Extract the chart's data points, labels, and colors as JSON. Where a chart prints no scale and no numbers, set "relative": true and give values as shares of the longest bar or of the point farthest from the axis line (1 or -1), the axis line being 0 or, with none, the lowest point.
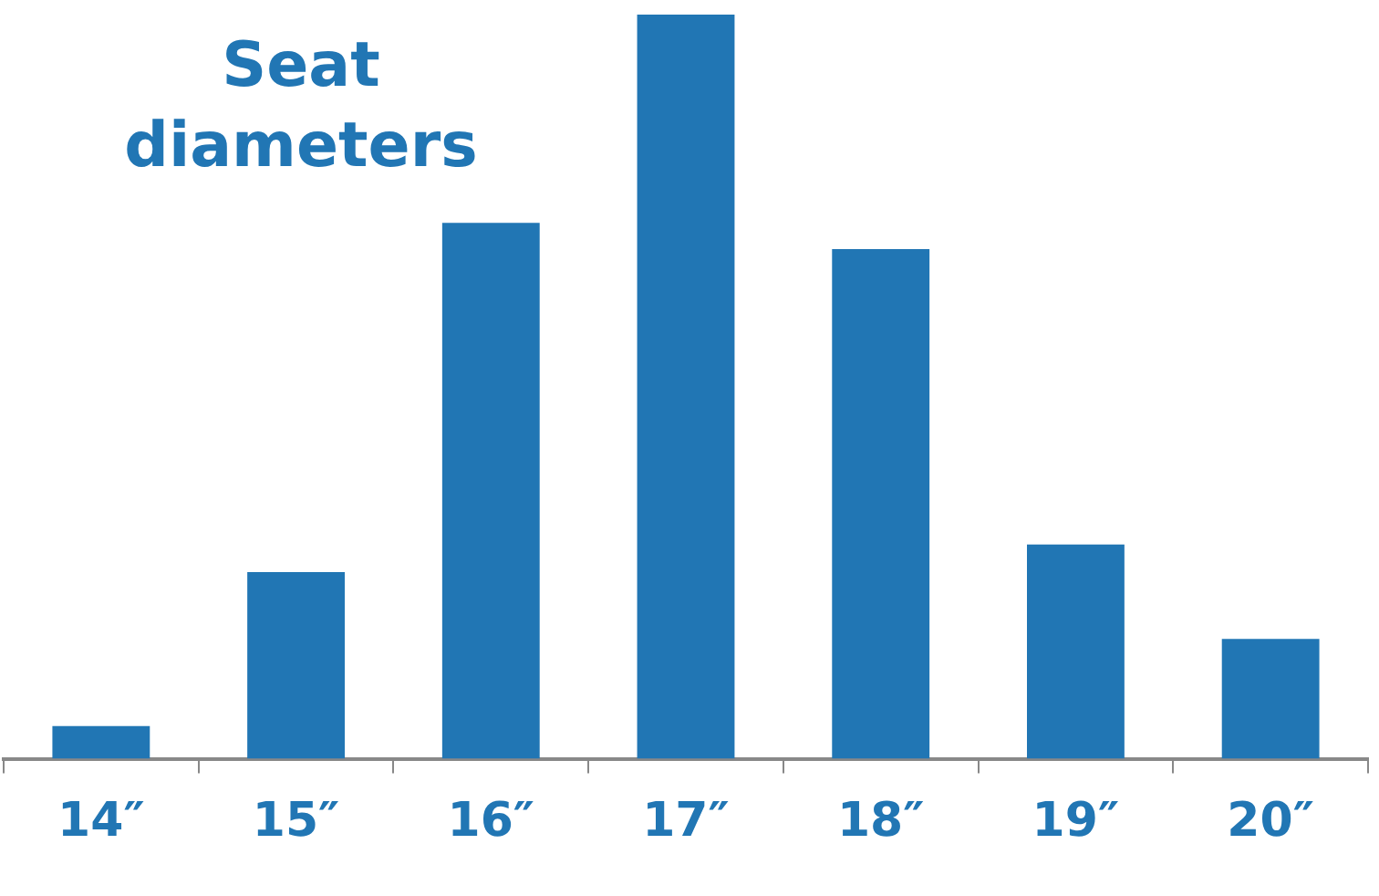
{
  "chart_data": {
    "type": "bar",
    "title": "Seat diameters",
    "relative": true,
    "categories": [
      "14″",
      "15″",
      "16″",
      "17″",
      "18″",
      "19″",
      "20″"
    ],
    "values": [
      0.044,
      0.251,
      0.72,
      1,
      0.685,
      0.288,
      0.161
    ],
    "color": "#2176b4",
    "grid": false,
    "legend": false
  }
}
